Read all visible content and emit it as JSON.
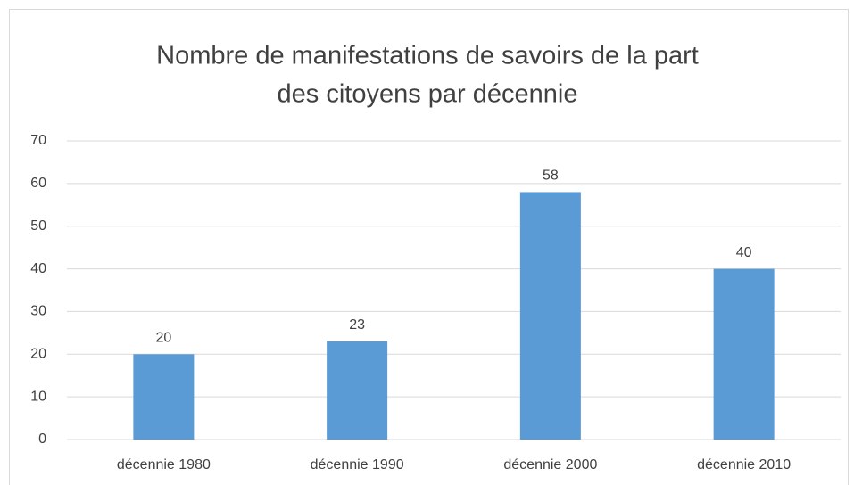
{
  "chart_data": {
    "type": "bar",
    "title": [
      "Nombre de manifestations de savoirs de la part",
      "des citoyens par décennie"
    ],
    "categories": [
      "décennie 1980",
      "décennie 1990",
      "décennie 2000",
      "décennie 2010"
    ],
    "values": [
      20,
      23,
      58,
      40
    ],
    "color": "#5b9bd5",
    "ylim": [
      0,
      70
    ],
    "yticks": [
      0,
      10,
      20,
      30,
      40,
      50,
      60,
      70
    ],
    "grid": true
  }
}
